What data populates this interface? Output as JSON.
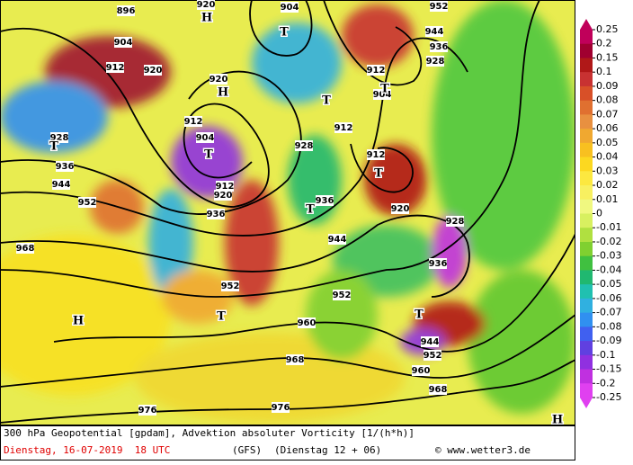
{
  "map": {
    "contour_labels": [
      "896",
      "904",
      "912",
      "920",
      "920",
      "912",
      "904",
      "912",
      "920",
      "936",
      "928",
      "936",
      "944",
      "912",
      "912",
      "904",
      "912",
      "920",
      "928",
      "936",
      "944",
      "952",
      "960",
      "968",
      "952",
      "960",
      "968",
      "952",
      "936",
      "944",
      "952",
      "968",
      "928",
      "920",
      "904",
      "952",
      "944",
      "936",
      "928",
      "976",
      "976"
    ],
    "pressure_centers": [
      "H",
      "T",
      "T",
      "H",
      "T",
      "T",
      "T",
      "T",
      "T",
      "H",
      "T",
      "T",
      "H"
    ]
  },
  "colorbar": {
    "ticks": [
      0.25,
      0.2,
      0.15,
      0.1,
      0.09,
      0.08,
      0.07,
      0.06,
      0.05,
      0.04,
      0.03,
      0.02,
      0.01,
      0,
      -0.01,
      -0.02,
      -0.03,
      -0.04,
      -0.05,
      -0.06,
      -0.07,
      -0.08,
      -0.09,
      -0.1,
      -0.15,
      -0.2,
      -0.25
    ],
    "colors": [
      "#c0005a",
      "#a00030",
      "#b01818",
      "#c83232",
      "#d85028",
      "#e07030",
      "#e89040",
      "#f0a830",
      "#f8c020",
      "#fcd820",
      "#fce840",
      "#f8f060",
      "#f0f880",
      "#d8f060",
      "#b0e040",
      "#80d030",
      "#40c040",
      "#20b870",
      "#20c0b0",
      "#30b0e0",
      "#3090f0",
      "#4060f0",
      "#6040e0",
      "#9030e0",
      "#c030e0",
      "#e040f0"
    ]
  },
  "footer": {
    "line1": "300 hPa Geopotential [gpdam], Advektion absoluter Vorticity [1/(h*h)]",
    "date": "Dienstag, 16-07-2019  18 UTC",
    "model": "(GFS)",
    "run": "(Dienstag 12 + 06)",
    "credit": "© www.wetter3.de"
  }
}
